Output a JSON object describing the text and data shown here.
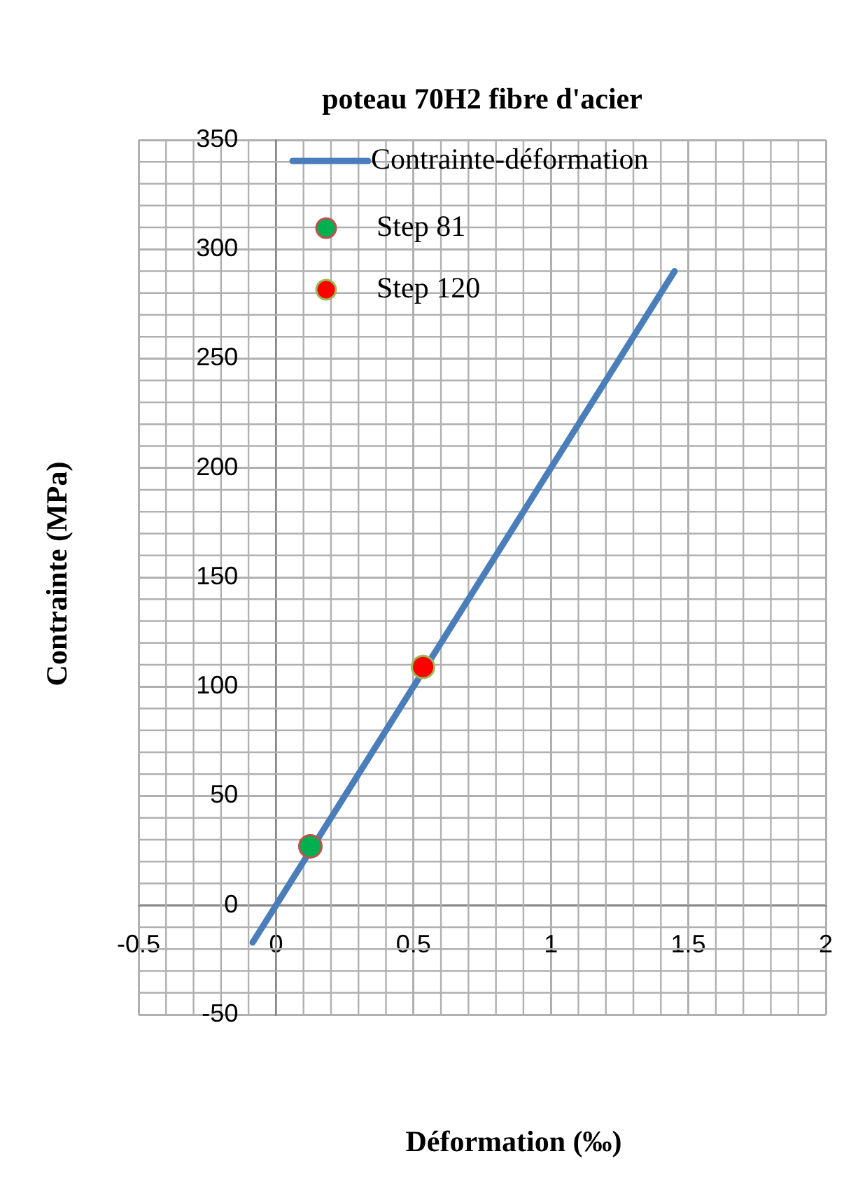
{
  "chart_data": {
    "type": "line",
    "title": "poteau 70H2 fibre d'acier",
    "xlabel": "Déformation (‰)",
    "ylabel": "Contrainte (MPa)",
    "xlim": [
      -0.5,
      2
    ],
    "xticks": [
      -0.5,
      0,
      0.5,
      1,
      1.5,
      2
    ],
    "ylim": [
      -50,
      350
    ],
    "yticks": [
      -50,
      0,
      50,
      100,
      150,
      200,
      250,
      300,
      350
    ],
    "grid": true,
    "legend": "top left",
    "series": [
      {
        "name": "Contrainte-déformation",
        "color": "#4a7ebb",
        "marker": "none",
        "x": [
          -0.085,
          1.45
        ],
        "values": [
          -17,
          290
        ]
      },
      {
        "name": "Step 81",
        "type": "scatter",
        "color": "#00b050",
        "marker": "circle",
        "x": [
          0.125
        ],
        "values": [
          27
        ]
      },
      {
        "name": "Step 120",
        "type": "scatter",
        "color": "#ff0000",
        "marker": "circle",
        "x": [
          0.535
        ],
        "values": [
          109
        ]
      }
    ]
  }
}
